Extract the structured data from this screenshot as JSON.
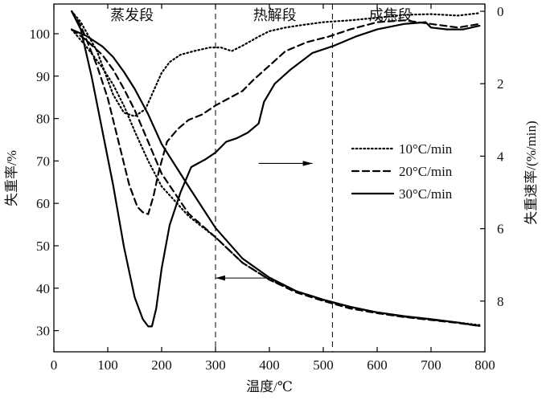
{
  "chart_data": {
    "type": "line",
    "title": "",
    "xlabel": "温度/℃",
    "ylabel": "失重率/%",
    "ylabel_right": "失重速率/(%/min)",
    "xlim": [
      0,
      800
    ],
    "ylim": [
      25,
      107
    ],
    "ylim_right": [
      -0.2,
      9.4
    ],
    "x_ticks": [
      0,
      100,
      200,
      300,
      400,
      500,
      600,
      700,
      800
    ],
    "y_ticks": [
      30,
      40,
      50,
      60,
      70,
      80,
      90,
      100
    ],
    "y_right_ticks": [
      0,
      2,
      4,
      6,
      8
    ],
    "stages": [
      {
        "label": "蒸发段",
        "x_center": 145
      },
      {
        "label": "热解段",
        "x_center": 410
      },
      {
        "label": "成焦段",
        "x_center": 625
      }
    ],
    "stage_boundaries": [
      300,
      517
    ],
    "arrows": [
      {
        "from_x": 380,
        "to_x": 480,
        "y": 4.2,
        "axis": "right"
      },
      {
        "from_x": 405,
        "to_x": 300,
        "y": 42.4,
        "axis": "left"
      }
    ],
    "legend": {
      "position": "right-middle",
      "entries": [
        "10°C/min",
        "20°C/min",
        "30°C/min"
      ]
    },
    "series": [
      {
        "name": "10°C/min",
        "kind": "TG",
        "axis": "left",
        "style": "dotted",
        "x": [
          33,
          60,
          90,
          110,
          130,
          150,
          175,
          200,
          250,
          300,
          350,
          400,
          450,
          500,
          550,
          600,
          650,
          700,
          750,
          790
        ],
        "y": [
          101,
          97,
          92,
          88,
          83,
          77,
          70,
          64,
          57,
          52,
          46,
          42,
          39.3,
          37.2,
          35.6,
          34.3,
          33.3,
          32.6,
          31.9,
          31.3
        ]
      },
      {
        "name": "20°C/min",
        "kind": "TG",
        "axis": "left",
        "style": "dashed",
        "x": [
          33,
          60,
          90,
          110,
          130,
          150,
          175,
          200,
          250,
          300,
          350,
          400,
          450,
          500,
          550,
          600,
          650,
          700,
          750,
          790
        ],
        "y": [
          101,
          98.5,
          95,
          91.5,
          87,
          82,
          74.5,
          67,
          57.6,
          52,
          46,
          42,
          39,
          37,
          35.2,
          34.1,
          33.2,
          32.5,
          31.8,
          31.1
        ]
      },
      {
        "name": "30°C/min",
        "kind": "TG",
        "axis": "left",
        "style": "solid",
        "x": [
          33,
          60,
          90,
          110,
          130,
          150,
          175,
          200,
          250,
          300,
          350,
          400,
          450,
          500,
          550,
          600,
          650,
          700,
          750,
          790
        ],
        "y": [
          101,
          99.5,
          97,
          94.5,
          91,
          87,
          81,
          74,
          64,
          54.2,
          47,
          42.5,
          39.3,
          37.3,
          35.6,
          34.3,
          33.4,
          32.7,
          31.9,
          31.1
        ]
      },
      {
        "name": "10°C/min",
        "kind": "DTG",
        "axis": "right",
        "style": "dotted",
        "x": [
          33,
          50,
          80,
          110,
          130,
          150,
          170,
          185,
          200,
          215,
          235,
          260,
          290,
          310,
          330,
          350,
          380,
          400,
          430,
          460,
          500,
          550,
          600,
          650,
          700,
          750,
          790
        ],
        "y": [
          0,
          0.3,
          1.1,
          2.3,
          2.8,
          2.9,
          2.7,
          2.2,
          1.7,
          1.4,
          1.2,
          1.1,
          1.0,
          1.0,
          1.1,
          0.95,
          0.7,
          0.55,
          0.45,
          0.38,
          0.3,
          0.25,
          0.18,
          0.1,
          0.08,
          0.12,
          0.05
        ]
      },
      {
        "name": "20°C/min",
        "kind": "DTG",
        "axis": "right",
        "style": "dashed",
        "x": [
          33,
          50,
          80,
          100,
          120,
          140,
          155,
          165,
          175,
          185,
          195,
          210,
          230,
          250,
          275,
          300,
          325,
          350,
          370,
          400,
          430,
          470,
          510,
          550,
          600,
          650,
          700,
          750,
          790
        ],
        "y": [
          0,
          0.4,
          1.5,
          2.4,
          3.6,
          4.8,
          5.4,
          5.55,
          5.6,
          5.1,
          4.4,
          3.6,
          3.25,
          3.0,
          2.85,
          2.6,
          2.4,
          2.2,
          1.9,
          1.5,
          1.1,
          0.85,
          0.7,
          0.5,
          0.3,
          0.25,
          0.35,
          0.45,
          0.35
        ]
      },
      {
        "name": "30°C/min",
        "kind": "DTG",
        "axis": "right",
        "style": "solid",
        "x": [
          33,
          50,
          70,
          90,
          110,
          130,
          150,
          165,
          175,
          182,
          190,
          200,
          215,
          235,
          255,
          280,
          300,
          320,
          340,
          360,
          380,
          390,
          410,
          440,
          480,
          520,
          560,
          600,
          650,
          690,
          700,
          730,
          760,
          790
        ],
        "y": [
          0,
          0.5,
          1.8,
          3.3,
          4.8,
          6.5,
          7.9,
          8.5,
          8.7,
          8.7,
          8.2,
          7.1,
          5.9,
          5.0,
          4.3,
          4.1,
          3.9,
          3.6,
          3.5,
          3.35,
          3.1,
          2.5,
          2.0,
          1.6,
          1.15,
          0.95,
          0.7,
          0.5,
          0.35,
          0.3,
          0.45,
          0.5,
          0.5,
          0.4
        ]
      }
    ]
  }
}
